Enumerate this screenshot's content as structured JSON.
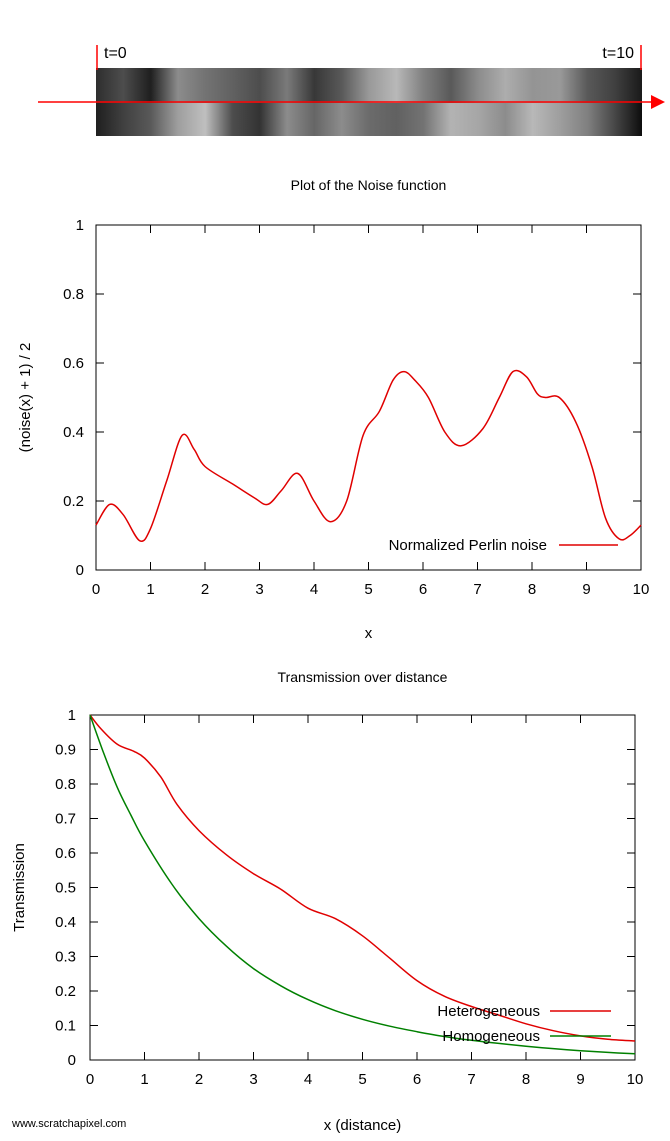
{
  "strip": {
    "start_label": "t=0",
    "end_label": "t=10",
    "noise_x": [
      0,
      0.5,
      1,
      1.5,
      2,
      2.5,
      3,
      3.5,
      4,
      4.5,
      5,
      5.5,
      6,
      6.5,
      7,
      7.5,
      8,
      8.5,
      9,
      9.5,
      10
    ],
    "noise_top": [
      0.18,
      0.3,
      0.12,
      0.55,
      0.45,
      0.38,
      0.3,
      0.48,
      0.22,
      0.35,
      0.6,
      0.72,
      0.5,
      0.35,
      0.55,
      0.68,
      0.58,
      0.6,
      0.35,
      0.25,
      0.1
    ],
    "noise_bottom": [
      0.12,
      0.25,
      0.35,
      0.62,
      0.75,
      0.3,
      0.2,
      0.55,
      0.4,
      0.55,
      0.42,
      0.38,
      0.45,
      0.7,
      0.65,
      0.55,
      0.72,
      0.62,
      0.5,
      0.28,
      0.05
    ],
    "arrow_color": "#ff0000"
  },
  "chart_data": [
    {
      "type": "line",
      "title": "Plot of the Noise function",
      "xlabel": "x",
      "ylabel": "(noise(x) + 1) / 2",
      "xlim": [
        0,
        10
      ],
      "ylim": [
        0,
        1
      ],
      "xticks": [
        "0",
        "1",
        "2",
        "3",
        "4",
        "5",
        "6",
        "7",
        "8",
        "9",
        "10"
      ],
      "yticks": [
        "0",
        "0.2",
        "0.4",
        "0.6",
        "0.8",
        "1"
      ],
      "legend_position": "bottom-right",
      "grid": false,
      "series": [
        {
          "name": "Normalized Perlin noise",
          "color": "#e00000",
          "x": [
            0,
            0.25,
            0.5,
            0.8,
            1.0,
            1.3,
            1.58,
            1.8,
            2.0,
            2.5,
            2.9,
            3.15,
            3.4,
            3.7,
            4.0,
            4.3,
            4.6,
            4.9,
            5.2,
            5.45,
            5.65,
            5.85,
            6.1,
            6.4,
            6.7,
            7.1,
            7.4,
            7.65,
            7.9,
            8.1,
            8.25,
            8.5,
            8.8,
            9.1,
            9.35,
            9.6,
            9.8,
            10.0
          ],
          "y": [
            0.13,
            0.19,
            0.16,
            0.085,
            0.12,
            0.26,
            0.39,
            0.35,
            0.3,
            0.25,
            0.21,
            0.19,
            0.23,
            0.28,
            0.2,
            0.14,
            0.2,
            0.39,
            0.46,
            0.55,
            0.575,
            0.55,
            0.5,
            0.4,
            0.36,
            0.41,
            0.5,
            0.575,
            0.56,
            0.51,
            0.5,
            0.5,
            0.43,
            0.3,
            0.15,
            0.09,
            0.1,
            0.13
          ]
        }
      ]
    },
    {
      "type": "line",
      "title": "Transmission over distance",
      "xlabel": "x (distance)",
      "ylabel": "Transmission",
      "xlim": [
        0,
        10
      ],
      "ylim": [
        0,
        1
      ],
      "xticks": [
        "0",
        "1",
        "2",
        "3",
        "4",
        "5",
        "6",
        "7",
        "8",
        "9",
        "10"
      ],
      "yticks": [
        "0",
        "0.1",
        "0.2",
        "0.3",
        "0.4",
        "0.5",
        "0.6",
        "0.7",
        "0.8",
        "0.9",
        "1"
      ],
      "legend_position": "bottom-right",
      "grid": false,
      "series": [
        {
          "name": "Heterogeneous",
          "color": "#e00000",
          "x": [
            0,
            0.2,
            0.5,
            0.8,
            1.0,
            1.3,
            1.6,
            2.0,
            2.5,
            3.0,
            3.5,
            4.0,
            4.5,
            5.0,
            5.5,
            6.0,
            6.5,
            7.0,
            7.5,
            8.0,
            8.5,
            9.0,
            9.5,
            10.0
          ],
          "y": [
            1.0,
            0.96,
            0.915,
            0.895,
            0.875,
            0.82,
            0.74,
            0.665,
            0.595,
            0.54,
            0.495,
            0.44,
            0.41,
            0.36,
            0.295,
            0.23,
            0.185,
            0.155,
            0.13,
            0.105,
            0.085,
            0.07,
            0.06,
            0.055
          ]
        },
        {
          "name": "Homogeneous",
          "color": "#008000",
          "x": [
            0,
            0.25,
            0.5,
            0.75,
            1.0,
            1.5,
            2.0,
            2.5,
            3.0,
            3.5,
            4.0,
            4.5,
            5.0,
            5.5,
            6.0,
            6.5,
            7.0,
            7.5,
            8.0,
            8.5,
            9.0,
            9.5,
            10.0
          ],
          "y": [
            1.0,
            0.89,
            0.79,
            0.71,
            0.635,
            0.51,
            0.41,
            0.33,
            0.265,
            0.215,
            0.175,
            0.143,
            0.118,
            0.098,
            0.082,
            0.068,
            0.057,
            0.048,
            0.04,
            0.033,
            0.027,
            0.022,
            0.018
          ]
        }
      ]
    }
  ],
  "footer": {
    "credit": "www.scratchapixel.com"
  }
}
